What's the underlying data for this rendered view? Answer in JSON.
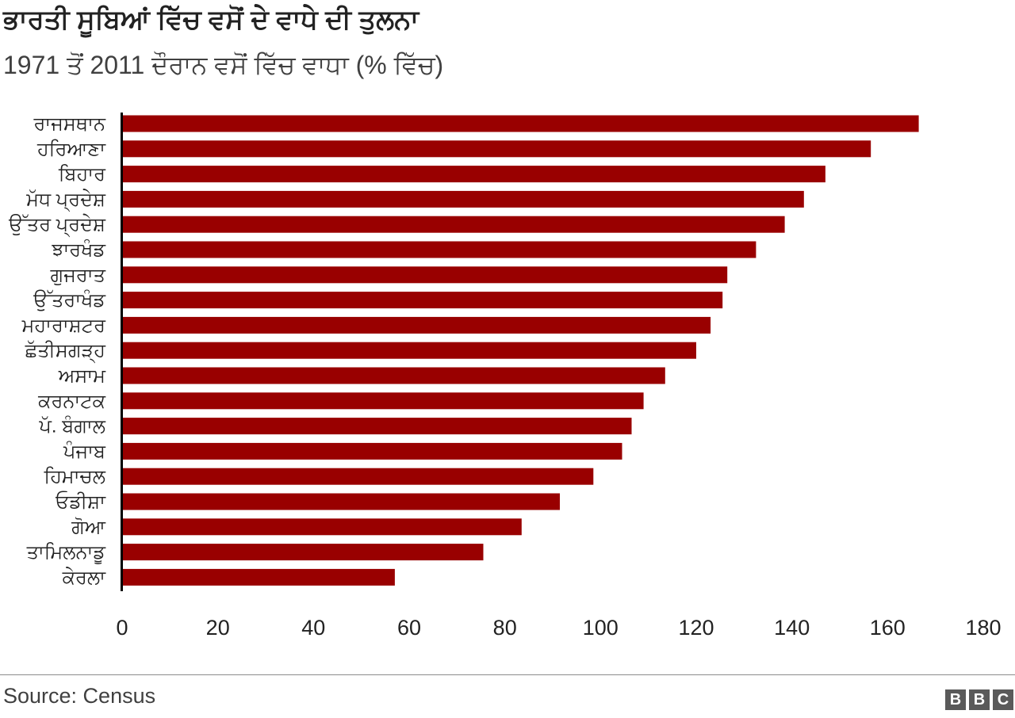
{
  "header": {
    "title": "ਭਾਰਤੀ ਸੂਬਿਆਂ ਵਿੱਚ ਵਸੋਂ ਦੇ ਵਾਧੇ ਦੀ ਤੁਲਨਾ",
    "subtitle": "1971 ਤੋਂ 2011 ਦੌਰਾਨ ਵਸੋਂ ਵਿੱਚ ਵਾਧਾ (% ਵਿੱਚ)"
  },
  "footer": {
    "source": "Source: Census",
    "logo_letters": [
      "B",
      "B",
      "C"
    ]
  },
  "colors": {
    "bar": "#990000",
    "axis": "#000000",
    "text": "#222222"
  },
  "chart_data": {
    "type": "bar",
    "orientation": "horizontal",
    "title": "ਭਾਰਤੀ ਸੂਬਿਆਂ ਵਿੱਚ ਵਸੋਂ ਦੇ ਵਾਧੇ ਦੀ ਤੁਲਨਾ",
    "subtitle": "1971 ਤੋਂ 2011 ਦੌਰਾਨ ਵਸੋਂ ਵਿੱਚ ਵਾਧਾ (% ਵਿੱਚ)",
    "categories": [
      "ਰਾਜਸਥਾਨ",
      "ਹਰਿਆਣਾ",
      "ਬਿਹਾਰ",
      "ਮੱਧ ਪ੍ਰਦੇਸ਼",
      "ਉੱਤਰ ਪ੍ਰਦੇਸ਼",
      "ਝਾਰਖੰਡ",
      "ਗੁਜਰਾਤ",
      "ਉੱਤਰਾਖੰਡ",
      "ਮਹਾਰਾਸ਼ਟਰ",
      "ਛੱਤੀਸਗੜ੍ਹ",
      "ਅਸਾਮ",
      "ਕਰਨਾਟਕ",
      "ਪੱ. ਬੰਗਾਲ",
      "ਪੰਜਾਬ",
      "ਹਿਮਾਚਲ",
      "ਓਡੀਸ਼ਾ",
      "ਗੋਆ",
      "ਤਾਮਿਲਨਾਡੂ",
      "ਕੇਰਲਾ"
    ],
    "values": [
      166.5,
      156.5,
      147,
      142.5,
      138.5,
      132.5,
      126.5,
      125.5,
      123,
      120,
      113.5,
      109,
      106.5,
      104.5,
      98.5,
      91.5,
      83.5,
      75.5,
      57
    ],
    "xlabel": "",
    "ylabel": "",
    "xlim": [
      0,
      180
    ],
    "xticks": [
      "0",
      "20",
      "40",
      "60",
      "80",
      "100",
      "120",
      "140",
      "160",
      "180"
    ],
    "grid": false,
    "legend": "none"
  }
}
